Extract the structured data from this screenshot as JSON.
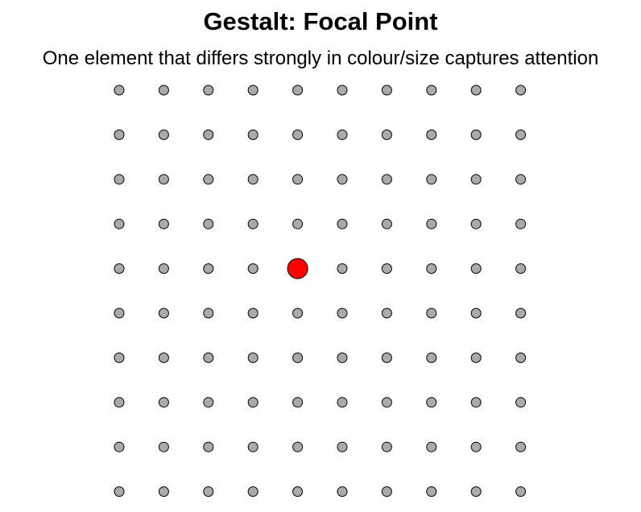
{
  "title": "Gestalt: Focal Point",
  "subtitle": "One element that differs strongly in colour/size captures attention",
  "grid": {
    "rows": 10,
    "cols": 10,
    "dot_color": "#aaaaaa",
    "dot_stroke": "#000000"
  },
  "focal_point": {
    "row": 5,
    "col": 5,
    "color": "#ff0000",
    "size": "larger"
  }
}
